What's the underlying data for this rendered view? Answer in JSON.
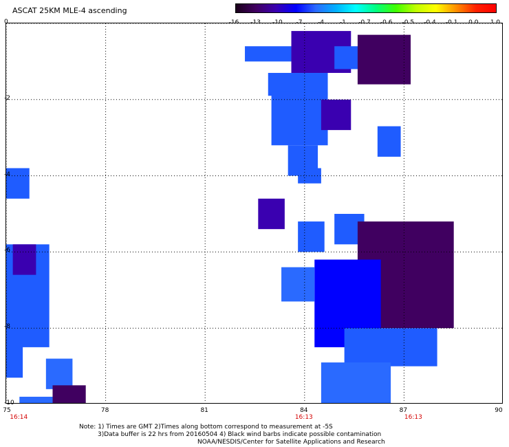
{
  "title": "ASCAT 25KM MLE-4 ascending",
  "colorbar": {
    "labels": [
      "-16",
      "-13",
      "-10",
      "-7",
      "-4",
      "-1",
      "-0.7",
      "-0.6",
      "-0.5",
      "-0.4",
      "-0.1",
      "0.0",
      "1.0"
    ],
    "colors": [
      "#1a001a",
      "#400060",
      "#3a00b0",
      "#0000ff",
      "#2a6aff",
      "#00b0ff",
      "#00ffff",
      "#00ff80",
      "#40ff00",
      "#c0ff00",
      "#ffff00",
      "#ff9000",
      "#ff2000",
      "#ff0000"
    ]
  },
  "axes": {
    "x_ticks": [
      "75",
      "78",
      "81",
      "84",
      "87",
      "90"
    ],
    "y_ticks": [
      "0",
      "-2",
      "-4",
      "-6",
      "-8",
      "-10"
    ],
    "x_range": [
      75,
      90
    ],
    "y_range": [
      -10,
      0
    ]
  },
  "time_labels": [
    {
      "text": "16:14",
      "lon": 75.4
    },
    {
      "text": "16:13",
      "lon": 84.0
    },
    {
      "text": "16:13",
      "lon": 87.3
    }
  ],
  "swath_cells": [
    {
      "lon": [
        82.2,
        83.6
      ],
      "lat": [
        -1.0,
        -0.6
      ],
      "color": "#1f5cff"
    },
    {
      "lon": [
        83.6,
        85.4
      ],
      "lat": [
        -1.3,
        -0.2
      ],
      "color": "#3a00b0"
    },
    {
      "lon": [
        82.9,
        84.7
      ],
      "lat": [
        -1.9,
        -1.3
      ],
      "color": "#1f5cff"
    },
    {
      "lon": [
        84.9,
        86.2
      ],
      "lat": [
        -1.2,
        -0.6
      ],
      "color": "#1f5cff"
    },
    {
      "lon": [
        85.6,
        87.2
      ],
      "lat": [
        -1.6,
        -0.3
      ],
      "color": "#400060"
    },
    {
      "lon": [
        83.0,
        84.7
      ],
      "lat": [
        -3.2,
        -1.8
      ],
      "color": "#1f5cff"
    },
    {
      "lon": [
        84.5,
        85.4
      ],
      "lat": [
        -2.8,
        -2.0
      ],
      "color": "#3a00b0"
    },
    {
      "lon": [
        83.5,
        84.4
      ],
      "lat": [
        -4.0,
        -3.2
      ],
      "color": "#1f5cff"
    },
    {
      "lon": [
        83.8,
        84.5
      ],
      "lat": [
        -4.2,
        -3.8
      ],
      "color": "#1f5cff"
    },
    {
      "lon": [
        86.2,
        86.9
      ],
      "lat": [
        -3.5,
        -2.7
      ],
      "color": "#1f5cff"
    },
    {
      "lon": [
        75.0,
        75.7
      ],
      "lat": [
        -4.6,
        -3.8
      ],
      "color": "#1f5cff"
    },
    {
      "lon": [
        82.6,
        83.4
      ],
      "lat": [
        -5.4,
        -4.6
      ],
      "color": "#3a00b0"
    },
    {
      "lon": [
        83.8,
        84.6
      ],
      "lat": [
        -6.0,
        -5.2
      ],
      "color": "#1f5cff"
    },
    {
      "lon": [
        84.9,
        85.8
      ],
      "lat": [
        -5.8,
        -5.0
      ],
      "color": "#1f5cff"
    },
    {
      "lon": [
        85.6,
        88.5
      ],
      "lat": [
        -8.0,
        -5.2
      ],
      "color": "#400060"
    },
    {
      "lon": [
        84.3,
        86.3
      ],
      "lat": [
        -8.5,
        -6.2
      ],
      "color": "#0000ff"
    },
    {
      "lon": [
        83.3,
        84.3
      ],
      "lat": [
        -7.3,
        -6.4
      ],
      "color": "#2a6aff"
    },
    {
      "lon": [
        85.2,
        88.0
      ],
      "lat": [
        -9.0,
        -8.0
      ],
      "color": "#1f5cff"
    },
    {
      "lon": [
        84.5,
        86.6
      ],
      "lat": [
        -10.0,
        -8.9
      ],
      "color": "#2a6aff"
    },
    {
      "lon": [
        75.0,
        76.3
      ],
      "lat": [
        -8.5,
        -5.8
      ],
      "color": "#1f5cff"
    },
    {
      "lon": [
        75.2,
        75.9
      ],
      "lat": [
        -6.6,
        -5.8
      ],
      "color": "#3a00b0"
    },
    {
      "lon": [
        75.0,
        75.5
      ],
      "lat": [
        -9.3,
        -8.0
      ],
      "color": "#1f5cff"
    },
    {
      "lon": [
        76.2,
        77.0
      ],
      "lat": [
        -9.6,
        -8.8
      ],
      "color": "#2a6aff"
    },
    {
      "lon": [
        76.4,
        77.4
      ],
      "lat": [
        -10.0,
        -9.5
      ],
      "color": "#400060"
    },
    {
      "lon": [
        75.4,
        76.4
      ],
      "lat": [
        -10.0,
        -9.8
      ],
      "color": "#2a6aff"
    }
  ],
  "notes": [
    "Note: 1) Times are GMT 2)Times along bottom correspond to measurement at -5S",
    "3)Data buffer is 22 hrs from 20160504 4) Black wind barbs indicate possible contamination",
    "NOAA/NESDIS/Center for Satellite Applications and Research"
  ]
}
